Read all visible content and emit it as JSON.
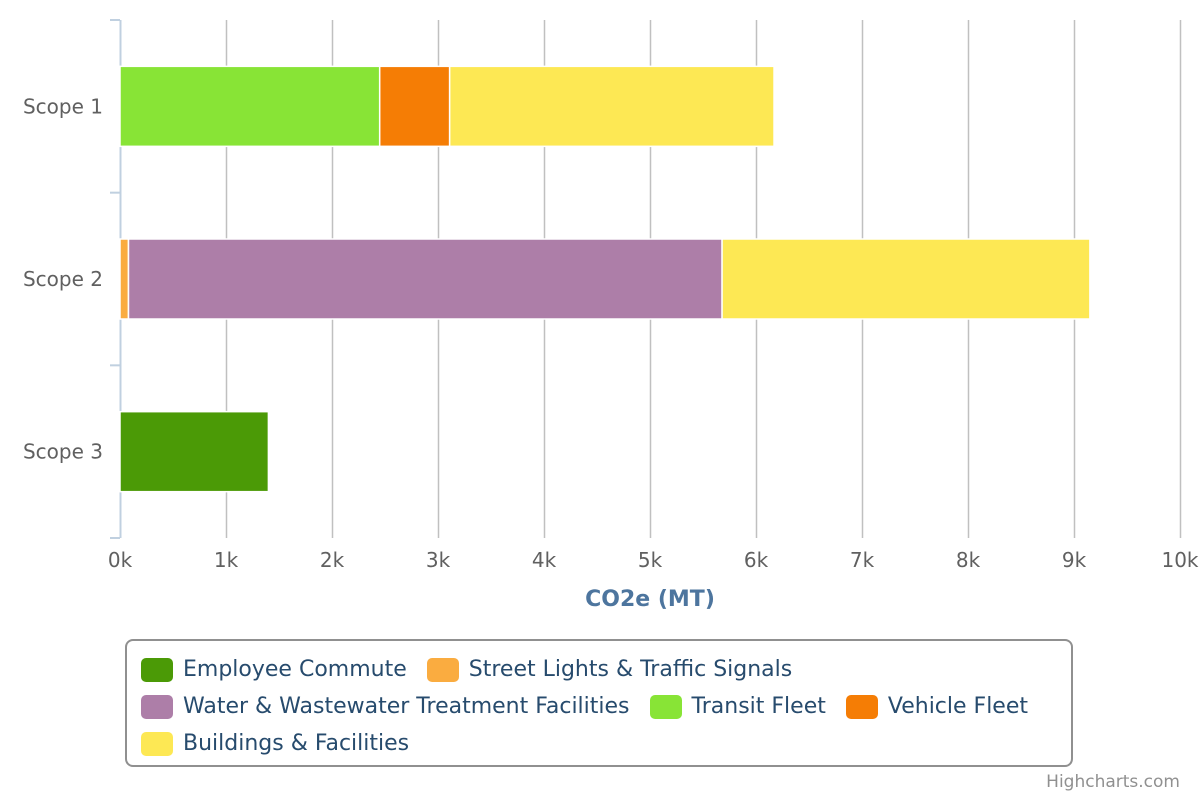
{
  "chart_data": {
    "type": "bar",
    "orientation": "horizontal",
    "stacked": true,
    "categories": [
      "Scope 1",
      "Scope 2",
      "Scope 3"
    ],
    "series": [
      {
        "name": "Employee Commute",
        "color": "#4b9a06",
        "values": [
          0,
          0,
          1400
        ]
      },
      {
        "name": "Street Lights & Traffic Signals",
        "color": "#faac40",
        "values": [
          0,
          80,
          0
        ]
      },
      {
        "name": "Water & Wastewater Treatment Facilities",
        "color": "#ad7ea8",
        "values": [
          0,
          5600,
          0
        ]
      },
      {
        "name": "Transit Fleet",
        "color": "#88e436",
        "values": [
          2450,
          0,
          0
        ]
      },
      {
        "name": "Vehicle Fleet",
        "color": "#f57d05",
        "values": [
          660,
          0,
          0
        ]
      },
      {
        "name": "Buildings & Facilities",
        "color": "#fde854",
        "values": [
          3060,
          3470,
          0
        ]
      }
    ],
    "stack_order": [
      "Transit Fleet",
      "Street Lights & Traffic Signals",
      "Employee Commute",
      "Vehicle Fleet",
      "Water & Wastewater Treatment Facilities",
      "Buildings & Facilities"
    ],
    "xlabel": "CO2e (MT)",
    "ylabel": "",
    "xlim": [
      0,
      10000
    ],
    "x_ticks": [
      0,
      1000,
      2000,
      3000,
      4000,
      5000,
      6000,
      7000,
      8000,
      9000,
      10000
    ],
    "x_tick_labels": [
      "0k",
      "1k",
      "2k",
      "3k",
      "4k",
      "5k",
      "6k",
      "7k",
      "8k",
      "9k",
      "10k"
    ],
    "grid": "vertical",
    "legend_placement": "bottom"
  },
  "credits": "Highcharts.com"
}
